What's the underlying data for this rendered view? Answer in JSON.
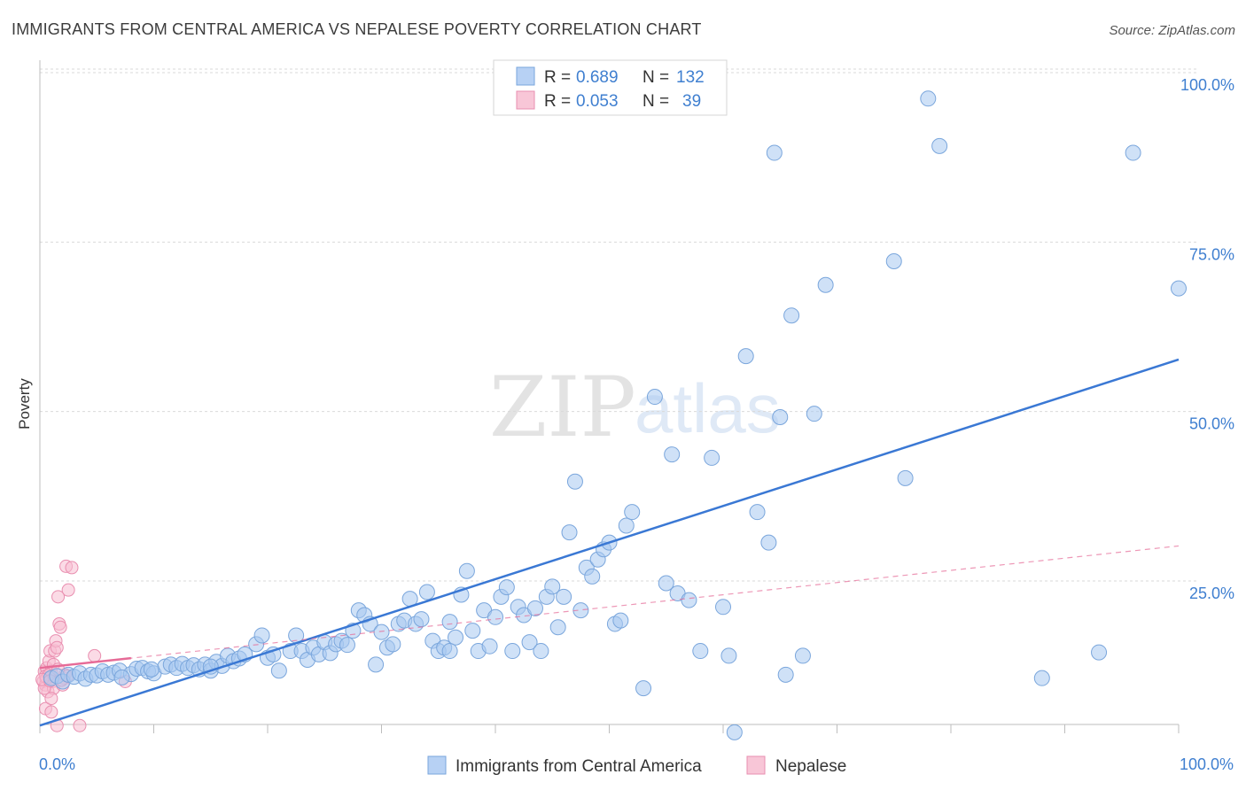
{
  "title": "IMMIGRANTS FROM CENTRAL AMERICA VS NEPALESE POVERTY CORRELATION CHART",
  "source": "Source: ZipAtlas.com",
  "watermark": {
    "zip": "ZIP",
    "atlas": "atlas"
  },
  "colors": {
    "blue": "#3a78d4",
    "pink": "#e66b97",
    "tick_text": "#3f7fd0"
  },
  "legend_top": {
    "rows": [
      {
        "r_label": "R = ",
        "r_value": "0.689",
        "n_label": "N = ",
        "n_value": "132",
        "color": "blue"
      },
      {
        "r_label": "R = ",
        "r_value": "0.053",
        "n_label": "N = ",
        "n_value": "39",
        "color": "pink"
      }
    ]
  },
  "legend_bottom": [
    "Immigrants from Central America",
    "Nepalese"
  ],
  "chart_data": {
    "type": "scatter",
    "title": "IMMIGRANTS FROM CENTRAL AMERICA VS NEPALESE POVERTY CORRELATION CHART",
    "xlabel": "",
    "ylabel": "Poverty",
    "xlim": [
      0,
      100
    ],
    "ylim": [
      0,
      105
    ],
    "x_tick_labels": [
      "0.0%",
      "100.0%"
    ],
    "y_tick_labels": [
      "25.0%",
      "50.0%",
      "75.0%",
      "100.0%"
    ],
    "y_ticks": [
      25,
      50,
      75,
      100
    ],
    "grid": true,
    "series": [
      {
        "name": "Immigrants from Central America",
        "color": "blue",
        "r": 0.689,
        "n": 132,
        "trend": {
          "x": [
            0,
            100
          ],
          "y": [
            5.5,
            59.5
          ]
        },
        "points": [
          [
            1,
            12.5
          ],
          [
            1.5,
            12.8
          ],
          [
            2,
            12
          ],
          [
            2.5,
            13
          ],
          [
            3,
            12.7
          ],
          [
            3.5,
            13.2
          ],
          [
            4,
            12.4
          ],
          [
            4.5,
            13
          ],
          [
            5,
            12.9
          ],
          [
            5.5,
            13.5
          ],
          [
            6,
            13
          ],
          [
            6.5,
            13.3
          ],
          [
            7,
            13.6
          ],
          [
            8,
            13.1
          ],
          [
            8.5,
            13.9
          ],
          [
            9,
            14
          ],
          [
            9.5,
            13.5
          ],
          [
            10,
            13.2
          ],
          [
            11,
            14.2
          ],
          [
            11.5,
            14.5
          ],
          [
            12,
            14
          ],
          [
            12.5,
            14.6
          ],
          [
            13,
            14
          ],
          [
            13.5,
            14.4
          ],
          [
            14,
            13.8
          ],
          [
            14.5,
            14.5
          ],
          [
            15,
            13.6
          ],
          [
            15.5,
            14.9
          ],
          [
            16,
            14.3
          ],
          [
            16.5,
            15.8
          ],
          [
            17,
            15
          ],
          [
            17.5,
            15.4
          ],
          [
            18,
            16
          ],
          [
            19,
            17.5
          ],
          [
            19.5,
            18.8
          ],
          [
            20,
            15.5
          ],
          [
            20.5,
            16
          ],
          [
            21,
            13.6
          ],
          [
            22,
            16.5
          ],
          [
            22.5,
            18.8
          ],
          [
            23,
            16.5
          ],
          [
            23.5,
            15.2
          ],
          [
            24,
            17
          ],
          [
            24.5,
            16
          ],
          [
            25,
            17.8
          ],
          [
            25.5,
            16.2
          ],
          [
            26,
            17.5
          ],
          [
            26.5,
            18
          ],
          [
            27,
            17.4
          ],
          [
            27.5,
            19.5
          ],
          [
            28,
            22.5
          ],
          [
            28.5,
            21.8
          ],
          [
            29,
            20.5
          ],
          [
            29.5,
            14.5
          ],
          [
            30,
            19.3
          ],
          [
            30.5,
            17
          ],
          [
            31,
            17.5
          ],
          [
            31.5,
            20.5
          ],
          [
            32,
            21
          ],
          [
            32.5,
            24.2
          ],
          [
            33,
            20.5
          ],
          [
            33.5,
            21.2
          ],
          [
            34,
            25.2
          ],
          [
            34.5,
            18
          ],
          [
            35,
            16.5
          ],
          [
            35.5,
            17
          ],
          [
            36,
            20.8
          ],
          [
            36.5,
            18.5
          ],
          [
            37,
            24.8
          ],
          [
            37.5,
            28.3
          ],
          [
            38,
            19.5
          ],
          [
            38.5,
            16.5
          ],
          [
            39,
            22.5
          ],
          [
            39.5,
            17.2
          ],
          [
            40,
            21.5
          ],
          [
            40.5,
            24.5
          ],
          [
            41,
            25.9
          ],
          [
            41.5,
            16.5
          ],
          [
            42,
            23
          ],
          [
            42.5,
            21.8
          ],
          [
            43,
            17.8
          ],
          [
            43.5,
            22.8
          ],
          [
            44,
            16.5
          ],
          [
            44.5,
            24.5
          ],
          [
            45,
            26
          ],
          [
            45.5,
            20
          ],
          [
            46,
            24.5
          ],
          [
            46.5,
            34
          ],
          [
            47,
            41.5
          ],
          [
            47.5,
            22.5
          ],
          [
            48,
            28.8
          ],
          [
            48.5,
            27.5
          ],
          [
            49,
            30
          ],
          [
            49.5,
            31.5
          ],
          [
            50,
            32.5
          ],
          [
            50.5,
            20.5
          ],
          [
            51,
            21
          ],
          [
            51.5,
            35
          ],
          [
            52,
            37
          ],
          [
            53,
            11
          ],
          [
            54,
            54
          ],
          [
            55,
            26.5
          ],
          [
            55.5,
            45.5
          ],
          [
            56,
            25
          ],
          [
            57,
            24
          ],
          [
            58,
            16.5
          ],
          [
            59,
            45
          ],
          [
            60,
            23
          ],
          [
            60.5,
            15.8
          ],
          [
            61,
            4.5
          ],
          [
            62,
            60
          ],
          [
            63,
            37
          ],
          [
            64,
            32.5
          ],
          [
            64.5,
            90
          ],
          [
            65,
            51
          ],
          [
            65.5,
            13
          ],
          [
            66,
            66
          ],
          [
            67,
            15.8
          ],
          [
            68,
            51.5
          ],
          [
            69,
            70.5
          ],
          [
            75,
            74
          ],
          [
            76,
            42
          ],
          [
            78,
            98
          ],
          [
            79,
            91
          ],
          [
            88,
            12.5
          ],
          [
            96,
            90
          ],
          [
            100,
            70
          ],
          [
            93,
            16.3
          ],
          [
            36,
            16.5
          ],
          [
            15,
            14.2
          ],
          [
            9.8,
            13.8
          ],
          [
            7.2,
            12.6
          ]
        ]
      },
      {
        "name": "Nepalese",
        "color": "pink",
        "r": 0.053,
        "n": 39,
        "trend": {
          "x": [
            0,
            100
          ],
          "y": [
            14,
            32
          ]
        },
        "points": [
          [
            0.3,
            12
          ],
          [
            0.4,
            13.5
          ],
          [
            0.5,
            11.5
          ],
          [
            0.6,
            14
          ],
          [
            0.5,
            12.8
          ],
          [
            0.7,
            10.5
          ],
          [
            0.8,
            15
          ],
          [
            0.9,
            16.5
          ],
          [
            1,
            13.5
          ],
          [
            1.1,
            12
          ],
          [
            1.2,
            11
          ],
          [
            1.3,
            16.5
          ],
          [
            1.4,
            18
          ],
          [
            1.5,
            17
          ],
          [
            1.6,
            24.5
          ],
          [
            1.7,
            20.5
          ],
          [
            1.8,
            20
          ],
          [
            2,
            11.5
          ],
          [
            2.1,
            12.5
          ],
          [
            2.2,
            13
          ],
          [
            2.3,
            29
          ],
          [
            2.5,
            25.5
          ],
          [
            2.8,
            28.8
          ],
          [
            0.5,
            8
          ],
          [
            1,
            7.5
          ],
          [
            1.5,
            5.5
          ],
          [
            3.5,
            5.5
          ],
          [
            7.5,
            12
          ],
          [
            4.8,
            15.8
          ],
          [
            0.6,
            12.5
          ],
          [
            0.8,
            13
          ],
          [
            1.2,
            14.5
          ],
          [
            1.9,
            12.2
          ],
          [
            0.4,
            11
          ],
          [
            2.4,
            12.8
          ],
          [
            1,
            9.5
          ],
          [
            0.2,
            12.3
          ],
          [
            1.6,
            13.8
          ],
          [
            0.9,
            12.1
          ]
        ]
      }
    ]
  }
}
